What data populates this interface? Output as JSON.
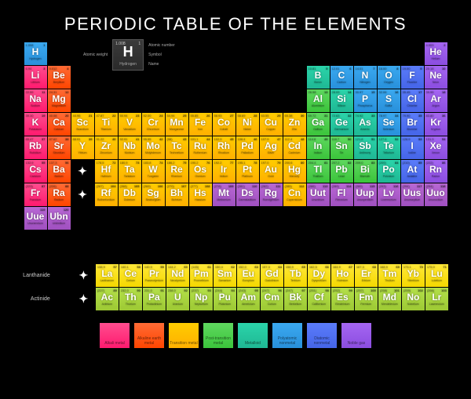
{
  "title": "PERIODIC TABLE OF THE ELEMENTS",
  "key": {
    "atomic_weight_label": "Atomic weight",
    "atomic_number_label": "Atomic number",
    "symbol_label": "Symbol",
    "name_label": "Name",
    "sample": {
      "wt": "1.008",
      "num": "1",
      "sym": "H",
      "nm": "Hydrogen"
    }
  },
  "fblock_labels": {
    "lanth": "Lanthanide",
    "act": "Actinide"
  },
  "categories": [
    {
      "cls": "cat-alkali",
      "label": "Alkali metal"
    },
    {
      "cls": "cat-alkaline",
      "label": "Alkaline earth metal"
    },
    {
      "cls": "cat-transition",
      "label": "Transition metal"
    },
    {
      "cls": "cat-post",
      "label": "Post-transition metal"
    },
    {
      "cls": "cat-metalloid",
      "label": "Metalloid"
    },
    {
      "cls": "cat-nonmetal",
      "label": "Polyatomic nonmetal"
    },
    {
      "cls": "cat-halogen",
      "label": "Diatomic nonmetal"
    },
    {
      "cls": "cat-noble",
      "label": "Noble gas"
    }
  ],
  "elements": [
    {
      "n": 1,
      "s": "H",
      "nm": "Hydrogen",
      "w": "1.008",
      "c": "nonmetal",
      "r": 1,
      "g": 1
    },
    {
      "n": 2,
      "s": "He",
      "nm": "Helium",
      "w": "4.003",
      "c": "noble",
      "r": 1,
      "g": 18
    },
    {
      "n": 3,
      "s": "Li",
      "nm": "Lithium",
      "w": "6.94",
      "c": "alkali",
      "r": 2,
      "g": 1
    },
    {
      "n": 4,
      "s": "Be",
      "nm": "Beryllium",
      "w": "9.012",
      "c": "alkaline",
      "r": 2,
      "g": 2
    },
    {
      "n": 5,
      "s": "B",
      "nm": "Boron",
      "w": "10.81",
      "c": "metalloid",
      "r": 2,
      "g": 13
    },
    {
      "n": 6,
      "s": "C",
      "nm": "Carbon",
      "w": "12.01",
      "c": "nonmetal",
      "r": 2,
      "g": 14
    },
    {
      "n": 7,
      "s": "N",
      "nm": "Nitrogen",
      "w": "14.01",
      "c": "nonmetal",
      "r": 2,
      "g": 15
    },
    {
      "n": 8,
      "s": "O",
      "nm": "Oxygen",
      "w": "16.00",
      "c": "nonmetal",
      "r": 2,
      "g": 16
    },
    {
      "n": 9,
      "s": "F",
      "nm": "Fluorine",
      "w": "19.00",
      "c": "halogen",
      "r": 2,
      "g": 17
    },
    {
      "n": 10,
      "s": "Ne",
      "nm": "Neon",
      "w": "20.18",
      "c": "noble",
      "r": 2,
      "g": 18
    },
    {
      "n": 11,
      "s": "Na",
      "nm": "Sodium",
      "w": "22.99",
      "c": "alkali",
      "r": 3,
      "g": 1
    },
    {
      "n": 12,
      "s": "Mg",
      "nm": "Magnesium",
      "w": "24.31",
      "c": "alkaline",
      "r": 3,
      "g": 2
    },
    {
      "n": 13,
      "s": "Al",
      "nm": "Aluminium",
      "w": "26.98",
      "c": "post",
      "r": 3,
      "g": 13
    },
    {
      "n": 14,
      "s": "Si",
      "nm": "Silicon",
      "w": "28.09",
      "c": "metalloid",
      "r": 3,
      "g": 14
    },
    {
      "n": 15,
      "s": "P",
      "nm": "Phosphorus",
      "w": "30.97",
      "c": "nonmetal",
      "r": 3,
      "g": 15
    },
    {
      "n": 16,
      "s": "S",
      "nm": "Sulfur",
      "w": "32.06",
      "c": "nonmetal",
      "r": 3,
      "g": 16
    },
    {
      "n": 17,
      "s": "Cl",
      "nm": "Chlorine",
      "w": "35.45",
      "c": "halogen",
      "r": 3,
      "g": 17
    },
    {
      "n": 18,
      "s": "Ar",
      "nm": "Argon",
      "w": "39.95",
      "c": "noble",
      "r": 3,
      "g": 18
    },
    {
      "n": 19,
      "s": "K",
      "nm": "Potassium",
      "w": "39.10",
      "c": "alkali",
      "r": 4,
      "g": 1
    },
    {
      "n": 20,
      "s": "Ca",
      "nm": "Calcium",
      "w": "40.08",
      "c": "alkaline",
      "r": 4,
      "g": 2
    },
    {
      "n": 21,
      "s": "Sc",
      "nm": "Scandium",
      "w": "44.96",
      "c": "transition",
      "r": 4,
      "g": 3
    },
    {
      "n": 22,
      "s": "Ti",
      "nm": "Titanium",
      "w": "47.87",
      "c": "transition",
      "r": 4,
      "g": 4
    },
    {
      "n": 23,
      "s": "V",
      "nm": "Vanadium",
      "w": "50.94",
      "c": "transition",
      "r": 4,
      "g": 5
    },
    {
      "n": 24,
      "s": "Cr",
      "nm": "Chromium",
      "w": "52.00",
      "c": "transition",
      "r": 4,
      "g": 6
    },
    {
      "n": 25,
      "s": "Mn",
      "nm": "Manganese",
      "w": "54.94",
      "c": "transition",
      "r": 4,
      "g": 7
    },
    {
      "n": 26,
      "s": "Fe",
      "nm": "Iron",
      "w": "55.85",
      "c": "transition",
      "r": 4,
      "g": 8
    },
    {
      "n": 27,
      "s": "Co",
      "nm": "Cobalt",
      "w": "58.93",
      "c": "transition",
      "r": 4,
      "g": 9
    },
    {
      "n": 28,
      "s": "Ni",
      "nm": "Nickel",
      "w": "58.69",
      "c": "transition",
      "r": 4,
      "g": 10
    },
    {
      "n": 29,
      "s": "Cu",
      "nm": "Copper",
      "w": "63.55",
      "c": "transition",
      "r": 4,
      "g": 11
    },
    {
      "n": 30,
      "s": "Zn",
      "nm": "Zinc",
      "w": "65.38",
      "c": "transition",
      "r": 4,
      "g": 12
    },
    {
      "n": 31,
      "s": "Ga",
      "nm": "Gallium",
      "w": "69.72",
      "c": "post",
      "r": 4,
      "g": 13
    },
    {
      "n": 32,
      "s": "Ge",
      "nm": "Germanium",
      "w": "72.63",
      "c": "metalloid",
      "r": 4,
      "g": 14
    },
    {
      "n": 33,
      "s": "As",
      "nm": "Arsenic",
      "w": "74.92",
      "c": "metalloid",
      "r": 4,
      "g": 15
    },
    {
      "n": 34,
      "s": "Se",
      "nm": "Selenium",
      "w": "78.97",
      "c": "nonmetal",
      "r": 4,
      "g": 16
    },
    {
      "n": 35,
      "s": "Br",
      "nm": "Bromine",
      "w": "79.90",
      "c": "halogen",
      "r": 4,
      "g": 17
    },
    {
      "n": 36,
      "s": "Kr",
      "nm": "Krypton",
      "w": "83.80",
      "c": "noble",
      "r": 4,
      "g": 18
    },
    {
      "n": 37,
      "s": "Rb",
      "nm": "Rubidium",
      "w": "85.47",
      "c": "alkali",
      "r": 5,
      "g": 1
    },
    {
      "n": 38,
      "s": "Sr",
      "nm": "Strontium",
      "w": "87.62",
      "c": "alkaline",
      "r": 5,
      "g": 2
    },
    {
      "n": 39,
      "s": "Y",
      "nm": "Yttrium",
      "w": "88.91",
      "c": "transition",
      "r": 5,
      "g": 3
    },
    {
      "n": 40,
      "s": "Zr",
      "nm": "Zirconium",
      "w": "91.22",
      "c": "transition",
      "r": 5,
      "g": 4
    },
    {
      "n": 41,
      "s": "Nb",
      "nm": "Niobium",
      "w": "92.91",
      "c": "transition",
      "r": 5,
      "g": 5
    },
    {
      "n": 42,
      "s": "Mo",
      "nm": "Molybdenum",
      "w": "95.95",
      "c": "transition",
      "r": 5,
      "g": 6
    },
    {
      "n": 43,
      "s": "Tc",
      "nm": "Technetium",
      "w": "(98)",
      "c": "transition",
      "r": 5,
      "g": 7
    },
    {
      "n": 44,
      "s": "Ru",
      "nm": "Ruthenium",
      "w": "101.1",
      "c": "transition",
      "r": 5,
      "g": 8
    },
    {
      "n": 45,
      "s": "Rh",
      "nm": "Rhodium",
      "w": "102.9",
      "c": "transition",
      "r": 5,
      "g": 9
    },
    {
      "n": 46,
      "s": "Pd",
      "nm": "Palladium",
      "w": "106.4",
      "c": "transition",
      "r": 5,
      "g": 10
    },
    {
      "n": 47,
      "s": "Ag",
      "nm": "Silver",
      "w": "107.9",
      "c": "transition",
      "r": 5,
      "g": 11
    },
    {
      "n": 48,
      "s": "Cd",
      "nm": "Cadmium",
      "w": "112.4",
      "c": "transition",
      "r": 5,
      "g": 12
    },
    {
      "n": 49,
      "s": "In",
      "nm": "Indium",
      "w": "114.8",
      "c": "post",
      "r": 5,
      "g": 13
    },
    {
      "n": 50,
      "s": "Sn",
      "nm": "Tin",
      "w": "118.7",
      "c": "post",
      "r": 5,
      "g": 14
    },
    {
      "n": 51,
      "s": "Sb",
      "nm": "Antimony",
      "w": "121.8",
      "c": "metalloid",
      "r": 5,
      "g": 15
    },
    {
      "n": 52,
      "s": "Te",
      "nm": "Tellurium",
      "w": "127.6",
      "c": "metalloid",
      "r": 5,
      "g": 16
    },
    {
      "n": 53,
      "s": "I",
      "nm": "Iodine",
      "w": "126.9",
      "c": "halogen",
      "r": 5,
      "g": 17
    },
    {
      "n": 54,
      "s": "Xe",
      "nm": "Xenon",
      "w": "131.3",
      "c": "noble",
      "r": 5,
      "g": 18
    },
    {
      "n": 55,
      "s": "Cs",
      "nm": "Caesium",
      "w": "132.9",
      "c": "alkali",
      "r": 6,
      "g": 1
    },
    {
      "n": 56,
      "s": "Ba",
      "nm": "Barium",
      "w": "137.3",
      "c": "alkaline",
      "r": 6,
      "g": 2
    },
    {
      "n": "",
      "s": "✦",
      "nm": "",
      "w": "",
      "c": "plus",
      "r": 6,
      "g": 3
    },
    {
      "n": 72,
      "s": "Hf",
      "nm": "Hafnium",
      "w": "178.5",
      "c": "transition",
      "r": 6,
      "g": 4
    },
    {
      "n": 73,
      "s": "Ta",
      "nm": "Tantalum",
      "w": "180.9",
      "c": "transition",
      "r": 6,
      "g": 5
    },
    {
      "n": 74,
      "s": "W",
      "nm": "Tungsten",
      "w": "183.8",
      "c": "transition",
      "r": 6,
      "g": 6
    },
    {
      "n": 75,
      "s": "Re",
      "nm": "Rhenium",
      "w": "186.2",
      "c": "transition",
      "r": 6,
      "g": 7
    },
    {
      "n": 76,
      "s": "Os",
      "nm": "Osmium",
      "w": "190.2",
      "c": "transition",
      "r": 6,
      "g": 8
    },
    {
      "n": 77,
      "s": "Ir",
      "nm": "Iridium",
      "w": "192.2",
      "c": "transition",
      "r": 6,
      "g": 9
    },
    {
      "n": 78,
      "s": "Pt",
      "nm": "Platinum",
      "w": "195.1",
      "c": "transition",
      "r": 6,
      "g": 10
    },
    {
      "n": 79,
      "s": "Au",
      "nm": "Gold",
      "w": "197.0",
      "c": "transition",
      "r": 6,
      "g": 11
    },
    {
      "n": 80,
      "s": "Hg",
      "nm": "Mercury",
      "w": "200.6",
      "c": "transition",
      "r": 6,
      "g": 12
    },
    {
      "n": 81,
      "s": "Tl",
      "nm": "Thallium",
      "w": "204.4",
      "c": "post",
      "r": 6,
      "g": 13
    },
    {
      "n": 82,
      "s": "Pb",
      "nm": "Lead",
      "w": "207.2",
      "c": "post",
      "r": 6,
      "g": 14
    },
    {
      "n": 83,
      "s": "Bi",
      "nm": "Bismuth",
      "w": "209.0",
      "c": "post",
      "r": 6,
      "g": 15
    },
    {
      "n": 84,
      "s": "Po",
      "nm": "Polonium",
      "w": "(209)",
      "c": "metalloid",
      "r": 6,
      "g": 16
    },
    {
      "n": 85,
      "s": "At",
      "nm": "Astatine",
      "w": "(210)",
      "c": "halogen",
      "r": 6,
      "g": 17
    },
    {
      "n": 86,
      "s": "Rn",
      "nm": "Radon",
      "w": "(222)",
      "c": "noble",
      "r": 6,
      "g": 18
    },
    {
      "n": 87,
      "s": "Fr",
      "nm": "Francium",
      "w": "(223)",
      "c": "alkali",
      "r": 7,
      "g": 1
    },
    {
      "n": 88,
      "s": "Ra",
      "nm": "Radium",
      "w": "(226)",
      "c": "alkaline",
      "r": 7,
      "g": 2
    },
    {
      "n": "",
      "s": "✦",
      "nm": "",
      "w": "",
      "c": "plus",
      "r": 7,
      "g": 3
    },
    {
      "n": 104,
      "s": "Rf",
      "nm": "Rutherfordium",
      "w": "(267)",
      "c": "transition",
      "r": 7,
      "g": 4
    },
    {
      "n": 105,
      "s": "Db",
      "nm": "Dubnium",
      "w": "(268)",
      "c": "transition",
      "r": 7,
      "g": 5
    },
    {
      "n": 106,
      "s": "Sg",
      "nm": "Seaborgium",
      "w": "(269)",
      "c": "transition",
      "r": 7,
      "g": 6
    },
    {
      "n": 107,
      "s": "Bh",
      "nm": "Bohrium",
      "w": "(270)",
      "c": "transition",
      "r": 7,
      "g": 7
    },
    {
      "n": 108,
      "s": "Hs",
      "nm": "Hassium",
      "w": "(277)",
      "c": "transition",
      "r": 7,
      "g": 8
    },
    {
      "n": 109,
      "s": "Mt",
      "nm": "Meitnerium",
      "w": "(278)",
      "c": "unknown",
      "r": 7,
      "g": 9
    },
    {
      "n": 110,
      "s": "Ds",
      "nm": "Darmstadtium",
      "w": "(281)",
      "c": "unknown",
      "r": 7,
      "g": 10
    },
    {
      "n": 111,
      "s": "Rg",
      "nm": "Roentgenium",
      "w": "(282)",
      "c": "unknown",
      "r": 7,
      "g": 11
    },
    {
      "n": 112,
      "s": "Cn",
      "nm": "Copernicium",
      "w": "(285)",
      "c": "transition",
      "r": 7,
      "g": 12
    },
    {
      "n": 113,
      "s": "Uut",
      "nm": "Ununtrium",
      "w": "(286)",
      "c": "unknown",
      "r": 7,
      "g": 13
    },
    {
      "n": 114,
      "s": "Fl",
      "nm": "Flerovium",
      "w": "(289)",
      "c": "unknown",
      "r": 7,
      "g": 14
    },
    {
      "n": 115,
      "s": "Uup",
      "nm": "Ununpentium",
      "w": "(289)",
      "c": "unknown",
      "r": 7,
      "g": 15
    },
    {
      "n": 116,
      "s": "Lv",
      "nm": "Livermorium",
      "w": "(293)",
      "c": "unknown",
      "r": 7,
      "g": 16
    },
    {
      "n": 117,
      "s": "Uus",
      "nm": "Ununseptium",
      "w": "(294)",
      "c": "unknown",
      "r": 7,
      "g": 17
    },
    {
      "n": 118,
      "s": "Uuo",
      "nm": "Ununoctium",
      "w": "(294)",
      "c": "unknown",
      "r": 7,
      "g": 18
    },
    {
      "n": 119,
      "s": "Uue",
      "nm": "Ununennium",
      "w": "",
      "c": "unknown",
      "r": 8,
      "g": 1
    },
    {
      "n": 120,
      "s": "Ubn",
      "nm": "Unbinilium",
      "w": "",
      "c": "unknown",
      "r": 8,
      "g": 2
    }
  ],
  "fblock": [
    {
      "n": "",
      "s": "✦",
      "c": "plus",
      "r": 1,
      "g": 1
    },
    {
      "n": 57,
      "s": "La",
      "nm": "Lanthanum",
      "w": "138.9",
      "c": "lanth",
      "r": 1,
      "g": 2
    },
    {
      "n": 58,
      "s": "Ce",
      "nm": "Cerium",
      "w": "140.1",
      "c": "lanth",
      "r": 1,
      "g": 3
    },
    {
      "n": 59,
      "s": "Pr",
      "nm": "Praseodymium",
      "w": "140.9",
      "c": "lanth",
      "r": 1,
      "g": 4
    },
    {
      "n": 60,
      "s": "Nd",
      "nm": "Neodymium",
      "w": "144.2",
      "c": "lanth",
      "r": 1,
      "g": 5
    },
    {
      "n": 61,
      "s": "Pm",
      "nm": "Promethium",
      "w": "(145)",
      "c": "lanth",
      "r": 1,
      "g": 6
    },
    {
      "n": 62,
      "s": "Sm",
      "nm": "Samarium",
      "w": "150.4",
      "c": "lanth",
      "r": 1,
      "g": 7
    },
    {
      "n": 63,
      "s": "Eu",
      "nm": "Europium",
      "w": "152.0",
      "c": "lanth",
      "r": 1,
      "g": 8
    },
    {
      "n": 64,
      "s": "Gd",
      "nm": "Gadolinium",
      "w": "157.3",
      "c": "lanth",
      "r": 1,
      "g": 9
    },
    {
      "n": 65,
      "s": "Tb",
      "nm": "Terbium",
      "w": "158.9",
      "c": "lanth",
      "r": 1,
      "g": 10
    },
    {
      "n": 66,
      "s": "Dy",
      "nm": "Dysprosium",
      "w": "162.5",
      "c": "lanth",
      "r": 1,
      "g": 11
    },
    {
      "n": 67,
      "s": "Ho",
      "nm": "Holmium",
      "w": "164.9",
      "c": "lanth",
      "r": 1,
      "g": 12
    },
    {
      "n": 68,
      "s": "Er",
      "nm": "Erbium",
      "w": "167.3",
      "c": "lanth",
      "r": 1,
      "g": 13
    },
    {
      "n": 69,
      "s": "Tm",
      "nm": "Thulium",
      "w": "168.9",
      "c": "lanth",
      "r": 1,
      "g": 14
    },
    {
      "n": 70,
      "s": "Yb",
      "nm": "Ytterbium",
      "w": "173.1",
      "c": "lanth",
      "r": 1,
      "g": 15
    },
    {
      "n": 71,
      "s": "Lu",
      "nm": "Lutetium",
      "w": "175.0",
      "c": "lanth",
      "r": 1,
      "g": 16
    },
    {
      "n": "",
      "s": "✦",
      "c": "plus",
      "r": 2,
      "g": 1
    },
    {
      "n": 89,
      "s": "Ac",
      "nm": "Actinium",
      "w": "(227)",
      "c": "act",
      "r": 2,
      "g": 2
    },
    {
      "n": 90,
      "s": "Th",
      "nm": "Thorium",
      "w": "232.0",
      "c": "act",
      "r": 2,
      "g": 3
    },
    {
      "n": 91,
      "s": "Pa",
      "nm": "Protactinium",
      "w": "231.0",
      "c": "act",
      "r": 2,
      "g": 4
    },
    {
      "n": 92,
      "s": "U",
      "nm": "Uranium",
      "w": "238.0",
      "c": "act",
      "r": 2,
      "g": 5
    },
    {
      "n": 93,
      "s": "Np",
      "nm": "Neptunium",
      "w": "(237)",
      "c": "act",
      "r": 2,
      "g": 6
    },
    {
      "n": 94,
      "s": "Pu",
      "nm": "Plutonium",
      "w": "(244)",
      "c": "act",
      "r": 2,
      "g": 7
    },
    {
      "n": 95,
      "s": "Am",
      "nm": "Americium",
      "w": "(243)",
      "c": "act",
      "r": 2,
      "g": 8
    },
    {
      "n": 96,
      "s": "Cm",
      "nm": "Curium",
      "w": "(247)",
      "c": "act",
      "r": 2,
      "g": 9
    },
    {
      "n": 97,
      "s": "Bk",
      "nm": "Berkelium",
      "w": "(247)",
      "c": "act",
      "r": 2,
      "g": 10
    },
    {
      "n": 98,
      "s": "Cf",
      "nm": "Californium",
      "w": "(251)",
      "c": "act",
      "r": 2,
      "g": 11
    },
    {
      "n": 99,
      "s": "Es",
      "nm": "Einsteinium",
      "w": "(252)",
      "c": "act",
      "r": 2,
      "g": 12
    },
    {
      "n": 100,
      "s": "Fm",
      "nm": "Fermium",
      "w": "(257)",
      "c": "act",
      "r": 2,
      "g": 13
    },
    {
      "n": 101,
      "s": "Md",
      "nm": "Mendelevium",
      "w": "(258)",
      "c": "act",
      "r": 2,
      "g": 14
    },
    {
      "n": 102,
      "s": "No",
      "nm": "Nobelium",
      "w": "(259)",
      "c": "act",
      "r": 2,
      "g": 15
    },
    {
      "n": 103,
      "s": "Lr",
      "nm": "Lawrencium",
      "w": "(266)",
      "c": "act",
      "r": 2,
      "g": 16
    }
  ]
}
